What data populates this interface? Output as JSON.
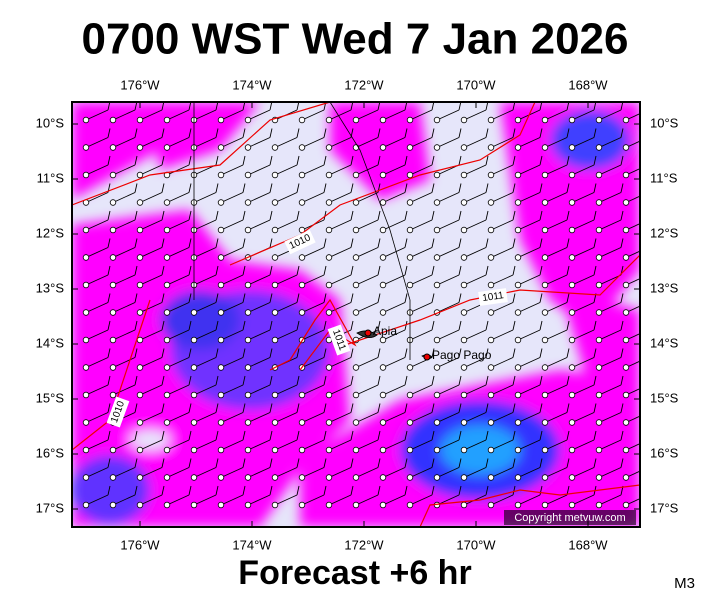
{
  "header": {
    "title": "0700 WST Wed 7 Jan 2026"
  },
  "map": {
    "lon_labels": [
      "176°W",
      "174°W",
      "172°W",
      "170°W",
      "168°W"
    ],
    "lat_labels": [
      "10°S",
      "11°S",
      "12°S",
      "13°S",
      "14°S",
      "15°S",
      "16°S",
      "17°S"
    ],
    "places": [
      "Apia",
      "Pago Pago"
    ],
    "isobar_labels": [
      "1010",
      "1011",
      "1011",
      "1010"
    ],
    "copyright": "Copyright metvuw.com"
  },
  "footer": {
    "subtitle": "Forecast +6 hr",
    "code": "M3"
  }
}
